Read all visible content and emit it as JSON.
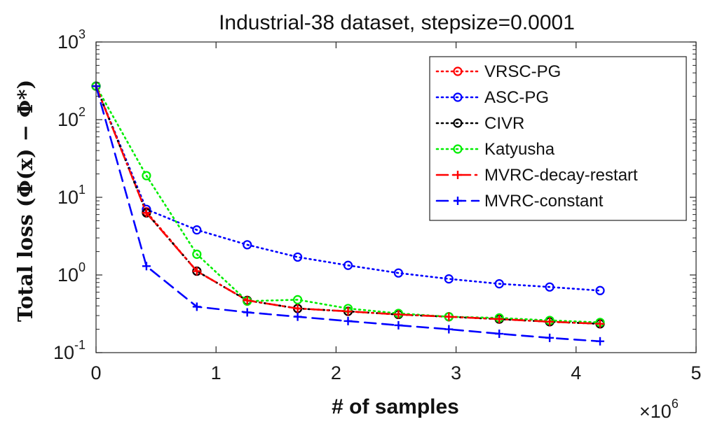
{
  "chart_data": {
    "type": "line",
    "title": "Industrial-38 dataset, stepsize=0.0001",
    "xlabel": "# of samples",
    "ylabel": "Total loss (Φ(x) − Φ*)",
    "xscale": "linear",
    "yscale": "log",
    "xlim": [
      0,
      5
    ],
    "ylim": [
      0.1,
      1000
    ],
    "x_multiplier": "×10^6",
    "x_multiplier_base": "×10",
    "x_multiplier_exp": "6",
    "xticks": [
      "0",
      "1",
      "2",
      "3",
      "4",
      "5"
    ],
    "yticks": [
      {
        "base": "10",
        "exp": "-1"
      },
      {
        "base": "10",
        "exp": "0"
      },
      {
        "base": "10",
        "exp": "1"
      },
      {
        "base": "10",
        "exp": "2"
      },
      {
        "base": "10",
        "exp": "3"
      }
    ],
    "legend_position": "top-right",
    "series": [
      {
        "name": "VRSC-PG",
        "color": "#ff0000",
        "line": "dotted",
        "marker": "circle",
        "x": [
          0,
          0.42,
          0.84,
          1.26,
          1.68,
          2.1,
          2.52,
          2.94,
          3.36,
          3.78,
          4.2
        ],
        "y": [
          270,
          6.5,
          1.12,
          0.47,
          0.37,
          0.34,
          0.31,
          0.29,
          0.27,
          0.25,
          0.235
        ]
      },
      {
        "name": "ASC-PG",
        "color": "#0000ff",
        "line": "dotted",
        "marker": "circle",
        "x": [
          0,
          0.42,
          0.84,
          1.26,
          1.68,
          2.1,
          2.52,
          2.94,
          3.36,
          3.78,
          4.2
        ],
        "y": [
          270,
          7.0,
          3.8,
          2.45,
          1.7,
          1.33,
          1.06,
          0.89,
          0.77,
          0.7,
          0.63
        ]
      },
      {
        "name": "CIVR",
        "color": "#000000",
        "line": "dotted",
        "marker": "circle",
        "x": [
          0,
          0.42,
          0.84,
          1.26,
          1.68,
          2.1,
          2.52,
          2.94,
          3.36,
          3.78,
          4.2
        ],
        "y": [
          270,
          6.3,
          1.12,
          0.47,
          0.37,
          0.34,
          0.31,
          0.29,
          0.27,
          0.25,
          0.235
        ]
      },
      {
        "name": "Katyusha",
        "color": "#00ee00",
        "line": "dotted",
        "marker": "circle",
        "x": [
          0,
          0.42,
          0.84,
          1.26,
          1.68,
          2.1,
          2.52,
          2.94,
          3.36,
          3.78,
          4.2
        ],
        "y": [
          270,
          19,
          1.85,
          0.46,
          0.48,
          0.37,
          0.32,
          0.29,
          0.28,
          0.26,
          0.245
        ]
      },
      {
        "name": "MVRC-decay-restart",
        "color": "#ff0000",
        "line": "dashdot",
        "marker": "plus",
        "x": [
          0,
          0.42,
          0.84,
          1.26,
          1.68,
          2.1,
          2.52,
          2.94,
          3.36,
          3.78,
          4.2
        ],
        "y": [
          270,
          6.3,
          1.12,
          0.47,
          0.37,
          0.34,
          0.31,
          0.29,
          0.27,
          0.25,
          0.235
        ]
      },
      {
        "name": "MVRC-constant",
        "color": "#0000ff",
        "line": "dashed",
        "marker": "plus",
        "x": [
          0,
          0.42,
          0.84,
          1.26,
          1.68,
          2.1,
          2.52,
          2.94,
          3.36,
          3.78,
          4.2
        ],
        "y": [
          270,
          1.3,
          0.39,
          0.33,
          0.29,
          0.255,
          0.225,
          0.2,
          0.175,
          0.155,
          0.14
        ]
      }
    ]
  }
}
